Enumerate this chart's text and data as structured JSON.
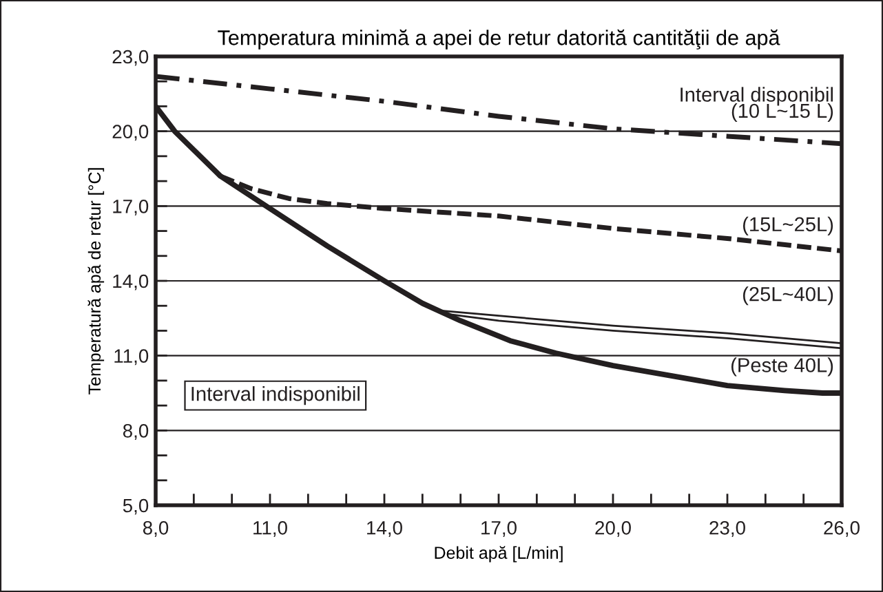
{
  "chart_data": {
    "type": "line",
    "title": "Temperatura minimă a apei de retur datorită cantităţii de apă",
    "xlabel": "Debit apă [L/min]",
    "ylabel": "Temperatură apă de retur [°C]",
    "xlim": [
      8,
      26
    ],
    "ylim": [
      5,
      23
    ],
    "xticks": [
      {
        "value": 8,
        "label": "8,0"
      },
      {
        "value": 9,
        "label": null
      },
      {
        "value": 10,
        "label": null
      },
      {
        "value": 11,
        "label": "11,0"
      },
      {
        "value": 12,
        "label": null
      },
      {
        "value": 13,
        "label": null
      },
      {
        "value": 14,
        "label": "14,0"
      },
      {
        "value": 15,
        "label": null
      },
      {
        "value": 16,
        "label": null
      },
      {
        "value": 17,
        "label": "17,0"
      },
      {
        "value": 18,
        "label": null
      },
      {
        "value": 19,
        "label": null
      },
      {
        "value": 20,
        "label": "20,0"
      },
      {
        "value": 21,
        "label": null
      },
      {
        "value": 22,
        "label": null
      },
      {
        "value": 23,
        "label": "23,0"
      },
      {
        "value": 24,
        "label": null
      },
      {
        "value": 25,
        "label": null
      },
      {
        "value": 26,
        "label": "26,0"
      }
    ],
    "yticks": [
      {
        "value": 5,
        "label": "5,0"
      },
      {
        "value": 6,
        "label": null
      },
      {
        "value": 7,
        "label": null
      },
      {
        "value": 8,
        "label": "8,0"
      },
      {
        "value": 9,
        "label": null
      },
      {
        "value": 10,
        "label": null
      },
      {
        "value": 11,
        "label": "11,0"
      },
      {
        "value": 12,
        "label": null
      },
      {
        "value": 13,
        "label": null
      },
      {
        "value": 14,
        "label": "14,0"
      },
      {
        "value": 15,
        "label": null
      },
      {
        "value": 16,
        "label": null
      },
      {
        "value": 17,
        "label": "17,0"
      },
      {
        "value": 18,
        "label": null
      },
      {
        "value": 19,
        "label": null
      },
      {
        "value": 20,
        "label": "20,0"
      },
      {
        "value": 21,
        "label": null
      },
      {
        "value": 22,
        "label": null
      },
      {
        "value": 23,
        "label": "23,0"
      }
    ],
    "grid": "y",
    "legend": false,
    "marker": "none",
    "series": [
      {
        "name": "(10 L~15 L)",
        "color": "#231f20",
        "line_style": "dashdot",
        "x": [
          8,
          11,
          14,
          17,
          20,
          23,
          26
        ],
        "values": [
          22.2,
          21.7,
          21.2,
          20.6,
          20.1,
          19.8,
          19.5
        ]
      },
      {
        "name": "(15L~25L)",
        "color": "#231f20",
        "line_style": "dashed",
        "x": [
          9.7,
          10.5,
          11.5,
          12.5,
          14,
          17,
          20,
          23,
          26
        ],
        "values": [
          18.2,
          17.7,
          17.3,
          17.1,
          16.9,
          16.6,
          16.1,
          15.7,
          15.2
        ]
      },
      {
        "name": "(25L~40L)",
        "color": "#231f20",
        "line_style": "solid",
        "x": [
          15.5,
          17,
          20,
          23,
          26
        ],
        "values": [
          12.8,
          12.6,
          12.2,
          11.9,
          11.5
        ]
      },
      {
        "color": "#231f20",
        "line_style": "solid",
        "x": [
          15.5,
          17,
          20,
          23,
          26
        ],
        "values": [
          12.7,
          12.4,
          12.0,
          11.7,
          11.3
        ]
      },
      {
        "name": "(Peste 40L)",
        "color": "#231f20",
        "line_style": "solid",
        "x": [
          8,
          8.5,
          9.7,
          11,
          12.5,
          14,
          15,
          16,
          17.3,
          18.5,
          20,
          21.5,
          23,
          24.5,
          25.5,
          26
        ],
        "values": [
          21.0,
          20.0,
          18.2,
          16.9,
          15.4,
          14.0,
          13.1,
          12.4,
          11.6,
          11.1,
          10.6,
          10.2,
          9.8,
          9.6,
          9.5,
          9.5
        ]
      }
    ],
    "annotations": [
      "Interval disponibil",
      "Interval indisponibil"
    ]
  }
}
